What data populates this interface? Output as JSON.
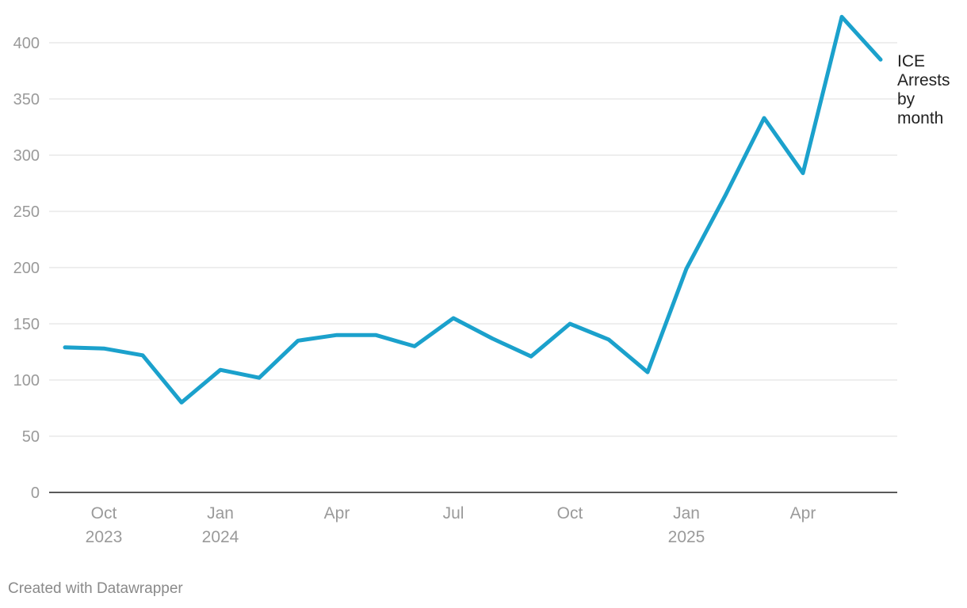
{
  "chart_data": {
    "type": "line",
    "title": "",
    "xlabel": "",
    "ylabel": "",
    "ylim": [
      0,
      400
    ],
    "yticks": [
      0,
      50,
      100,
      150,
      200,
      250,
      300,
      350,
      400
    ],
    "grid": true,
    "x_tick_labels": [
      {
        "date": "2023-10",
        "lines": [
          "Oct",
          "2023"
        ]
      },
      {
        "date": "2024-01",
        "lines": [
          "Jan",
          "2024"
        ]
      },
      {
        "date": "2024-04",
        "lines": [
          "Apr"
        ]
      },
      {
        "date": "2024-07",
        "lines": [
          "Jul"
        ]
      },
      {
        "date": "2024-10",
        "lines": [
          "Oct"
        ]
      },
      {
        "date": "2025-01",
        "lines": [
          "Jan",
          "2025"
        ]
      },
      {
        "date": "2025-04",
        "lines": [
          "Apr"
        ]
      }
    ],
    "series": [
      {
        "name": "ICE Arrests by month",
        "label_lines": [
          "ICE",
          "Arrests",
          "by",
          "month"
        ],
        "color": "#1ba1cc",
        "points": [
          {
            "x": "2023-09",
            "y": 129
          },
          {
            "x": "2023-10",
            "y": 128
          },
          {
            "x": "2023-11",
            "y": 122
          },
          {
            "x": "2023-12",
            "y": 80
          },
          {
            "x": "2024-01",
            "y": 109
          },
          {
            "x": "2024-02",
            "y": 102
          },
          {
            "x": "2024-03",
            "y": 135
          },
          {
            "x": "2024-04",
            "y": 140
          },
          {
            "x": "2024-05",
            "y": 140
          },
          {
            "x": "2024-06",
            "y": 130
          },
          {
            "x": "2024-07",
            "y": 155
          },
          {
            "x": "2024-08",
            "y": 137
          },
          {
            "x": "2024-09",
            "y": 121
          },
          {
            "x": "2024-10",
            "y": 150
          },
          {
            "x": "2024-11",
            "y": 136
          },
          {
            "x": "2024-12",
            "y": 107
          },
          {
            "x": "2025-01",
            "y": 199
          },
          {
            "x": "2025-02",
            "y": 264
          },
          {
            "x": "2025-03",
            "y": 333
          },
          {
            "x": "2025-04",
            "y": 284
          },
          {
            "x": "2025-05",
            "y": 423
          },
          {
            "x": "2025-06",
            "y": 385
          }
        ]
      }
    ]
  },
  "footer": {
    "credit": "Created with Datawrapper"
  }
}
